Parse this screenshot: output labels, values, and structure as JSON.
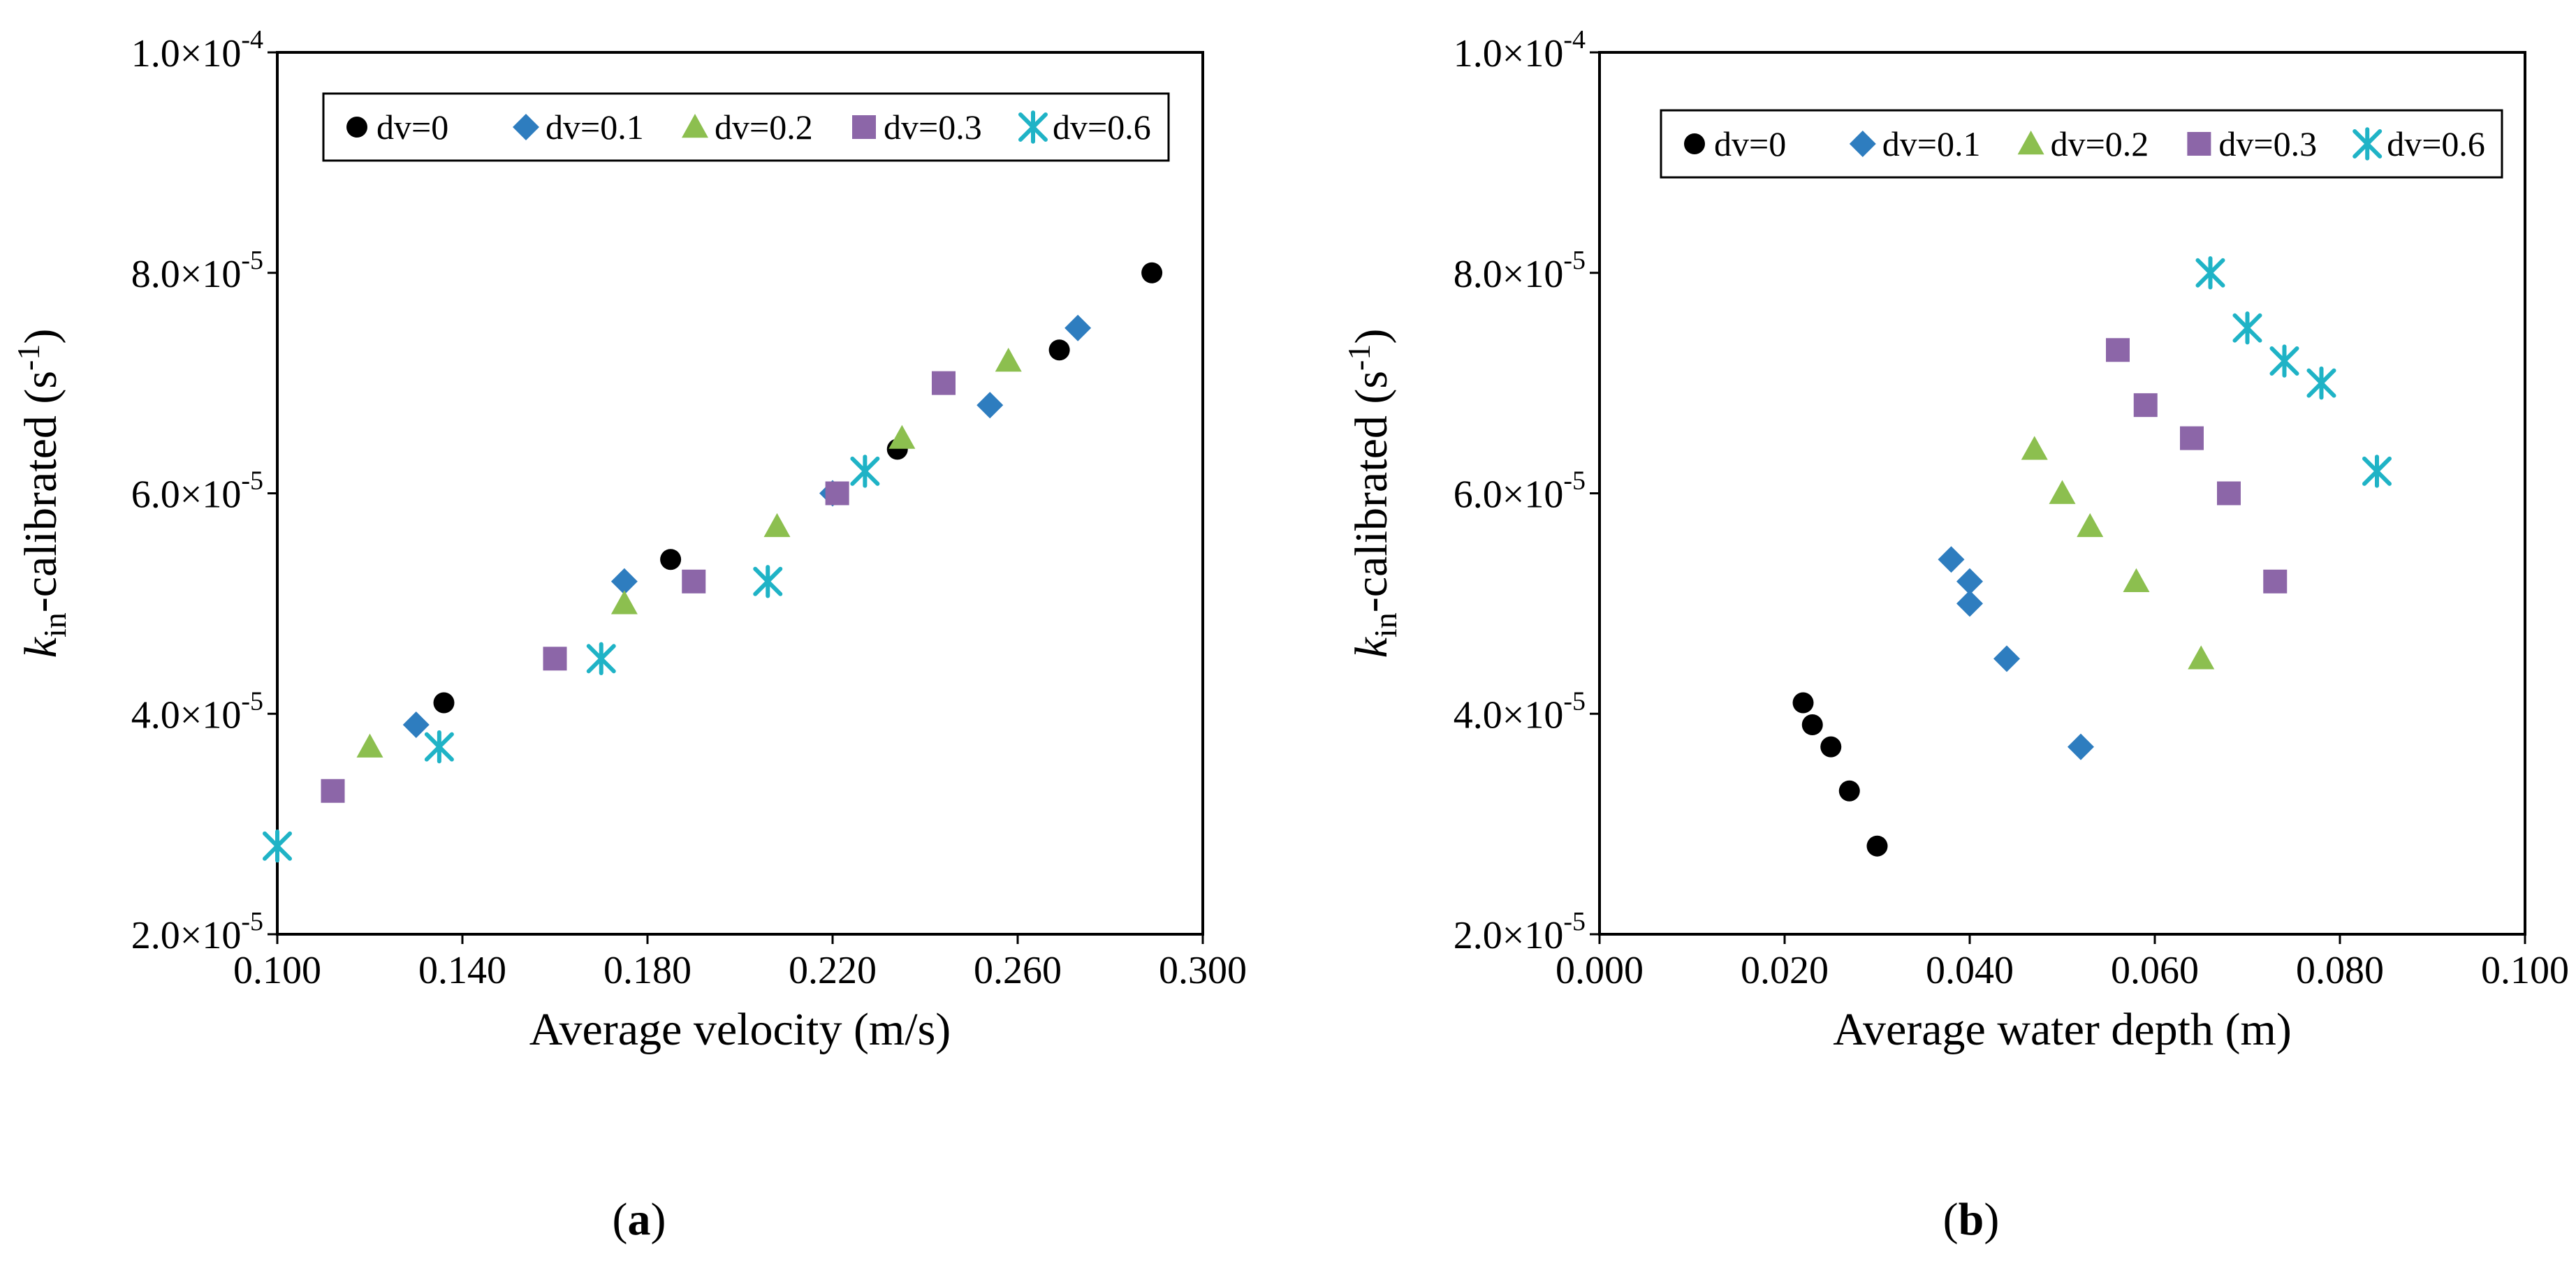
{
  "figure": {
    "panels": [
      {
        "label": "(a)",
        "letter": "a"
      },
      {
        "label": "(b)",
        "letter": "b"
      }
    ]
  },
  "ylabel": {
    "k": "k",
    "sub": "in",
    "rest": "-calibrated (s",
    "sup": "-1",
    "close": ")"
  },
  "colors": {
    "dv=0": "#000000",
    "dv=0.1": "#2e7dbf",
    "dv=0.2": "#8cbf4f",
    "dv=0.3": "#8c66a8",
    "dv=0.6": "#1fb3c6"
  },
  "chart_data": [
    {
      "type": "scatter",
      "title": "",
      "xlabel": "Average velocity (m/s)",
      "ylabel": "kin-calibrated (s-1)",
      "xlim": [
        0.1,
        0.3
      ],
      "ylim": [
        2e-05,
        0.0001
      ],
      "x_ticks": [
        "0.100",
        "0.140",
        "0.180",
        "0.220",
        "0.260",
        "0.300"
      ],
      "y_ticks": [
        {
          "mant": "2.0",
          "exp": "-5"
        },
        {
          "mant": "4.0",
          "exp": "-5"
        },
        {
          "mant": "6.0",
          "exp": "-5"
        },
        {
          "mant": "8.0",
          "exp": "-5"
        },
        {
          "mant": "1.0",
          "exp": "-4"
        }
      ],
      "legend": [
        "dv=0",
        "dv=0.1",
        "dv=0.2",
        "dv=0.3",
        "dv=0.6"
      ],
      "series": [
        {
          "name": "dv=0",
          "marker": "circle",
          "points": [
            [
              0.136,
              4.1e-05
            ],
            [
              0.185,
              5.4e-05
            ],
            [
              0.234,
              6.4e-05
            ],
            [
              0.269,
              7.3e-05
            ],
            [
              0.289,
              8e-05
            ]
          ]
        },
        {
          "name": "dv=0.1",
          "marker": "diamond",
          "points": [
            [
              0.13,
              3.9e-05
            ],
            [
              0.175,
              5.2e-05
            ],
            [
              0.22,
              6e-05
            ],
            [
              0.254,
              6.8e-05
            ],
            [
              0.273,
              7.5e-05
            ]
          ]
        },
        {
          "name": "dv=0.2",
          "marker": "triangle",
          "points": [
            [
              0.12,
              3.7e-05
            ],
            [
              0.175,
              5e-05
            ],
            [
              0.208,
              5.7e-05
            ],
            [
              0.235,
              6.5e-05
            ],
            [
              0.258,
              7.2e-05
            ]
          ]
        },
        {
          "name": "dv=0.3",
          "marker": "square",
          "points": [
            [
              0.112,
              3.3e-05
            ],
            [
              0.16,
              4.5e-05
            ],
            [
              0.19,
              5.2e-05
            ],
            [
              0.221,
              6e-05
            ],
            [
              0.244,
              7e-05
            ]
          ]
        },
        {
          "name": "dv=0.6",
          "marker": "star",
          "points": [
            [
              0.1,
              2.8e-05
            ],
            [
              0.135,
              3.7e-05
            ],
            [
              0.17,
              4.5e-05
            ],
            [
              0.206,
              5.2e-05
            ],
            [
              0.227,
              6.2e-05
            ]
          ]
        }
      ]
    },
    {
      "type": "scatter",
      "title": "",
      "xlabel": "Average water depth (m)",
      "ylabel": "kin-calibrated (s-1)",
      "xlim": [
        0.0,
        0.1
      ],
      "ylim": [
        2e-05,
        0.0001
      ],
      "x_ticks": [
        "0.000",
        "0.020",
        "0.040",
        "0.060",
        "0.080",
        "0.100"
      ],
      "y_ticks": [
        {
          "mant": "2.0",
          "exp": "-5"
        },
        {
          "mant": "4.0",
          "exp": "-5"
        },
        {
          "mant": "6.0",
          "exp": "-5"
        },
        {
          "mant": "8.0",
          "exp": "-5"
        },
        {
          "mant": "1.0",
          "exp": "-4"
        }
      ],
      "legend": [
        "dv=0",
        "dv=0.1",
        "dv=0.2",
        "dv=0.3",
        "dv=0.6"
      ],
      "series": [
        {
          "name": "dv=0",
          "marker": "circle",
          "points": [
            [
              0.022,
              4.1e-05
            ],
            [
              0.023,
              3.9e-05
            ],
            [
              0.025,
              3.7e-05
            ],
            [
              0.027,
              3.3e-05
            ],
            [
              0.03,
              2.8e-05
            ]
          ]
        },
        {
          "name": "dv=0.1",
          "marker": "diamond",
          "points": [
            [
              0.038,
              5.4e-05
            ],
            [
              0.04,
              5.2e-05
            ],
            [
              0.04,
              5e-05
            ],
            [
              0.044,
              4.5e-05
            ],
            [
              0.052,
              3.7e-05
            ]
          ]
        },
        {
          "name": "dv=0.2",
          "marker": "triangle",
          "points": [
            [
              0.047,
              6.4e-05
            ],
            [
              0.05,
              6e-05
            ],
            [
              0.053,
              5.7e-05
            ],
            [
              0.058,
              5.2e-05
            ],
            [
              0.065,
              4.5e-05
            ]
          ]
        },
        {
          "name": "dv=0.3",
          "marker": "square",
          "points": [
            [
              0.056,
              7.3e-05
            ],
            [
              0.059,
              6.8e-05
            ],
            [
              0.064,
              6.5e-05
            ],
            [
              0.068,
              6e-05
            ],
            [
              0.073,
              5.2e-05
            ]
          ]
        },
        {
          "name": "dv=0.6",
          "marker": "star",
          "points": [
            [
              0.066,
              8e-05
            ],
            [
              0.07,
              7.5e-05
            ],
            [
              0.074,
              7.2e-05
            ],
            [
              0.078,
              7e-05
            ],
            [
              0.084,
              6.2e-05
            ]
          ]
        }
      ]
    }
  ]
}
